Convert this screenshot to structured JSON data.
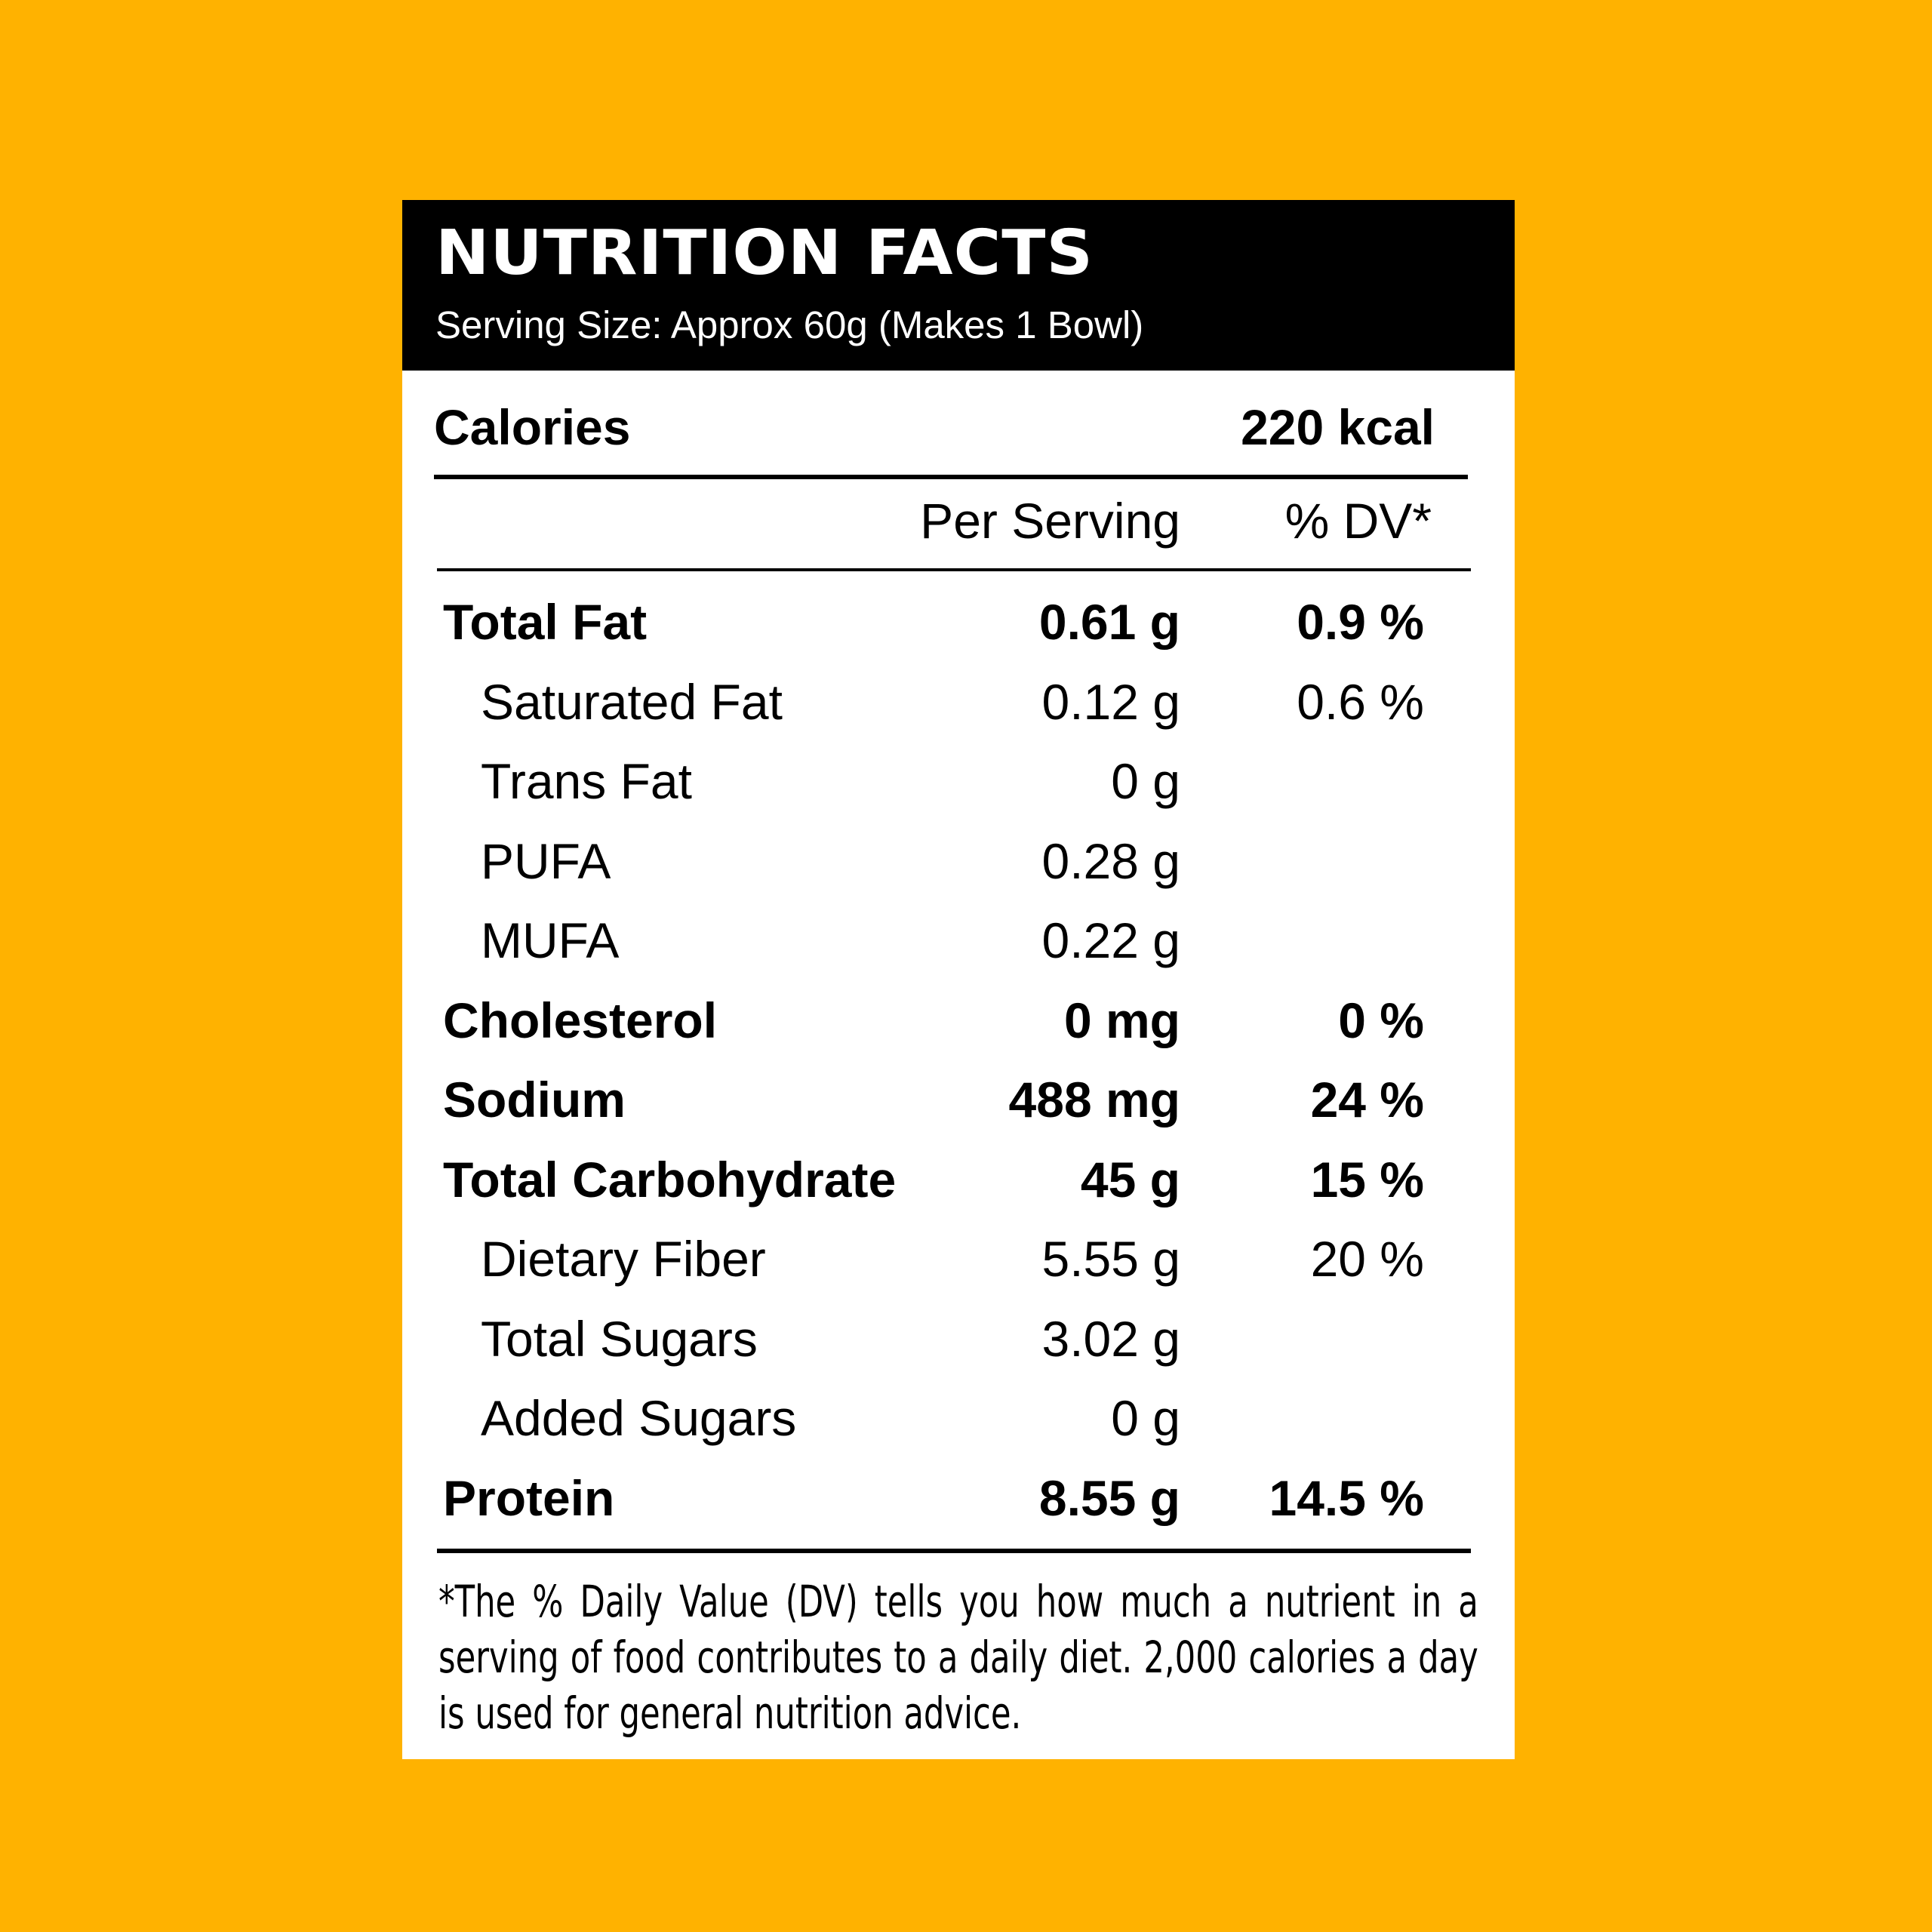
{
  "header": {
    "title": "NUTRITION FACTS",
    "serving_size": "Serving Size: Approx 60g (Makes 1 Bowl)"
  },
  "calories": {
    "label": "Calories",
    "value": "220 kcal"
  },
  "columns": {
    "per_serving": "Per Serving",
    "dv": "% DV*"
  },
  "rows": [
    {
      "name": "Total Fat",
      "amount": "0.61 g",
      "dv": "0.9 %",
      "style": "main"
    },
    {
      "name": "Saturated Fat",
      "amount": "0.12 g",
      "dv": "0.6 %",
      "style": "sub"
    },
    {
      "name": "Trans Fat",
      "amount": "0 g",
      "dv": "",
      "style": "sub"
    },
    {
      "name": "PUFA",
      "amount": "0.28 g",
      "dv": "",
      "style": "sub"
    },
    {
      "name": "MUFA",
      "amount": "0.22 g",
      "dv": "",
      "style": "sub"
    },
    {
      "name": "Cholesterol",
      "amount": "0 mg",
      "dv": "0 %",
      "style": "main"
    },
    {
      "name": "Sodium",
      "amount": "488 mg",
      "dv": "24 %",
      "style": "main"
    },
    {
      "name": "Total Carbohydrate",
      "amount": "45 g",
      "dv": "15 %",
      "style": "main"
    },
    {
      "name": "Dietary Fiber",
      "amount": "5.55 g",
      "dv": "20 %",
      "style": "sub"
    },
    {
      "name": "Total Sugars",
      "amount": "3.02 g",
      "dv": "",
      "style": "sub"
    },
    {
      "name": "Added Sugars",
      "amount": "0 g",
      "dv": "",
      "style": "sub"
    },
    {
      "name": "Protein",
      "amount": "8.55 g",
      "dv": "14.5 %",
      "style": "main"
    }
  ],
  "footnote": "*The % Daily Value (DV) tells you how much a nutrient in a serving of food contributes to a daily diet. 2,000 calories a day is used for general nutrition advice.",
  "colors": {
    "background": "#FFB200",
    "panel": "#FFFFFF",
    "header": "#000000"
  }
}
